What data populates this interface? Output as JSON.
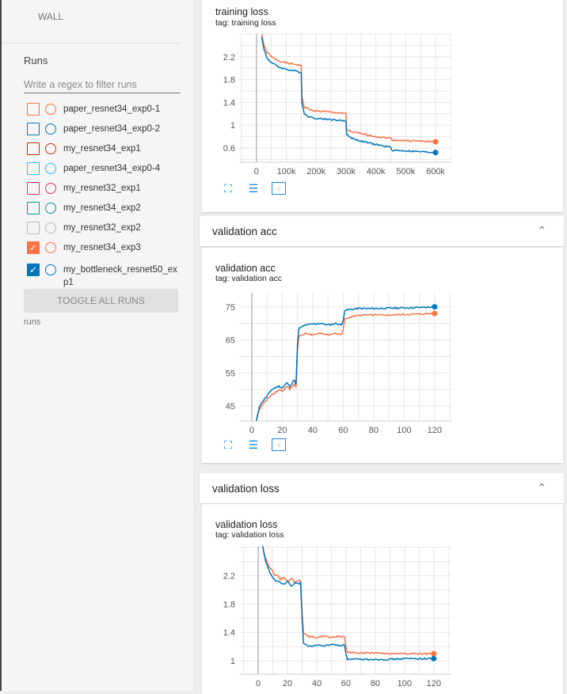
{
  "sidebar": {
    "wall_label": "WALL",
    "runs_title": "Runs",
    "filter_placeholder": "Write a regex to filter runs",
    "runs": [
      {
        "label": "paper_resnet34_exp0-1",
        "color": "#ff7043",
        "checked": false
      },
      {
        "label": "paper_resnet34_exp0-2",
        "color": "#0077bb",
        "checked": false
      },
      {
        "label": "my_resnet34_exp1",
        "color": "#cc3311",
        "checked": false
      },
      {
        "label": "paper_resnet34_exp0-4",
        "color": "#33bbee",
        "checked": false
      },
      {
        "label": "my_resnet32_exp1",
        "color": "#ee3377",
        "checked": false
      },
      {
        "label": "my_resnet34_exp2",
        "color": "#009988",
        "checked": false
      },
      {
        "label": "my_resnet32_exp2",
        "color": "#bbbbbb",
        "checked": false
      },
      {
        "label": "my_resnet34_exp3",
        "color": "#ff7043",
        "checked": true
      },
      {
        "label": "my_bottleneck_resnet50_exp1",
        "color": "#0077bb",
        "checked": true
      }
    ],
    "toggle_all": "TOGGLE ALL RUNS",
    "footer": "runs"
  },
  "sections": [
    {
      "header": "validation acc",
      "chevron": "^"
    },
    {
      "header": "validation loss",
      "chevron": "^"
    }
  ],
  "chart_data": [
    {
      "type": "line",
      "title": "training loss",
      "tag": "tag: training loss",
      "xlim": [
        -58,
        653
      ],
      "ylim": [
        0.35,
        2.6
      ],
      "xticks": [
        0,
        100,
        200,
        300,
        400,
        500,
        600
      ],
      "xtick_labels": [
        "0",
        "100k",
        "200k",
        "300k",
        "400k",
        "500k",
        "600k"
      ],
      "yticks": [
        0.6,
        1,
        1.4,
        1.8,
        2.2
      ],
      "ytick_labels": [
        "0.6",
        "1",
        "1.4",
        "1.8",
        "2.2"
      ],
      "series": [
        {
          "name": "my_resnet34_exp3",
          "color": "#ff7043",
          "x": [
            18,
            25,
            35,
            50,
            75,
            100,
            150,
            152,
            160,
            180,
            200,
            250,
            300,
            302,
            320,
            350,
            400,
            450,
            455,
            500,
            600
          ],
          "y": [
            2.6,
            2.4,
            2.28,
            2.2,
            2.13,
            2.09,
            2.05,
            1.5,
            1.32,
            1.27,
            1.25,
            1.23,
            1.2,
            0.92,
            0.88,
            0.85,
            0.8,
            0.77,
            0.74,
            0.73,
            0.71
          ]
        },
        {
          "name": "my_bottleneck_resnet50_exp1",
          "color": "#0077bb",
          "x": [
            18,
            25,
            35,
            50,
            75,
            100,
            150,
            152,
            160,
            180,
            200,
            250,
            300,
            302,
            320,
            350,
            400,
            450,
            455,
            500,
            600
          ],
          "y": [
            2.55,
            2.33,
            2.18,
            2.1,
            2.02,
            1.98,
            1.93,
            1.4,
            1.2,
            1.14,
            1.12,
            1.1,
            1.07,
            0.84,
            0.77,
            0.72,
            0.66,
            0.61,
            0.56,
            0.55,
            0.52
          ]
        }
      ]
    },
    {
      "type": "line",
      "title": "validation acc",
      "tag": "tag: validation acc",
      "xlim": [
        -8.3,
        131
      ],
      "ylim": [
        40.5,
        79.25
      ],
      "xticks": [
        0,
        20,
        40,
        60,
        80,
        100,
        120
      ],
      "xtick_labels": [
        "0",
        "20",
        "40",
        "60",
        "80",
        "100",
        "120"
      ],
      "yticks": [
        45,
        55,
        65,
        75
      ],
      "ytick_labels": [
        "45",
        "55",
        "65",
        "75"
      ],
      "series": [
        {
          "name": "my_resnet34_exp3",
          "color": "#ff7043",
          "x": [
            3,
            5,
            8,
            10,
            13,
            15,
            18,
            20,
            23,
            25,
            28,
            29,
            30,
            31,
            35,
            40,
            45,
            50,
            55,
            59,
            60,
            61,
            70,
            80,
            90,
            100,
            110,
            120
          ],
          "y": [
            40.5,
            44,
            46,
            47,
            48.5,
            49,
            50,
            49.5,
            51,
            50,
            51.5,
            50.5,
            62,
            66,
            67,
            66.5,
            67,
            66.5,
            67,
            66.5,
            68,
            71.5,
            72.5,
            72.5,
            72.5,
            72.7,
            72.8,
            73
          ]
        },
        {
          "name": "my_bottleneck_resnet50_exp1",
          "color": "#0077bb",
          "x": [
            3,
            5,
            8,
            10,
            13,
            15,
            18,
            20,
            23,
            25,
            28,
            29,
            30,
            31,
            35,
            40,
            45,
            50,
            55,
            59,
            60,
            61,
            70,
            80,
            90,
            100,
            110,
            120
          ],
          "y": [
            40.5,
            45,
            47,
            48,
            50,
            50.5,
            51,
            50.5,
            52,
            51,
            53,
            51.5,
            64,
            68.5,
            69.5,
            69.8,
            70,
            69.5,
            70,
            69.5,
            71,
            74,
            74.5,
            74.5,
            74.6,
            74.7,
            74.8,
            75
          ]
        }
      ]
    },
    {
      "type": "line",
      "title": "validation loss",
      "tag": "tag: validation loss",
      "xlim": [
        -13,
        132
      ],
      "ylim": [
        0.81,
        2.62
      ],
      "xticks": [
        0,
        20,
        40,
        60,
        80,
        100,
        120
      ],
      "xtick_labels": [
        "0",
        "20",
        "40",
        "60",
        "80",
        "100",
        "120"
      ],
      "yticks": [
        1,
        1.4,
        1.8,
        2.2
      ],
      "ytick_labels": [
        "1",
        "1.4",
        "1.8",
        "2.2"
      ],
      "series": [
        {
          "name": "my_resnet34_exp3",
          "color": "#ff7043",
          "x": [
            3,
            5,
            7,
            9,
            11,
            13,
            15,
            18,
            20,
            23,
            25,
            28,
            29,
            30,
            31,
            35,
            40,
            45,
            50,
            55,
            59,
            60,
            61,
            70,
            80,
            90,
            100,
            120
          ],
          "y": [
            2.62,
            2.45,
            2.35,
            2.3,
            2.22,
            2.2,
            2.15,
            2.18,
            2.12,
            2.17,
            2.1,
            2.15,
            2.12,
            1.7,
            1.38,
            1.34,
            1.33,
            1.35,
            1.32,
            1.35,
            1.33,
            1.2,
            1.12,
            1.11,
            1.11,
            1.1,
            1.1,
            1.1
          ]
        },
        {
          "name": "my_bottleneck_resnet50_exp1",
          "color": "#0077bb",
          "x": [
            3,
            5,
            7,
            9,
            11,
            13,
            15,
            18,
            20,
            23,
            25,
            28,
            29,
            30,
            31,
            35,
            40,
            45,
            50,
            55,
            59,
            60,
            61,
            70,
            80,
            90,
            100,
            120
          ],
          "y": [
            2.62,
            2.4,
            2.3,
            2.2,
            2.15,
            2.12,
            2.1,
            2.08,
            2.12,
            2.05,
            2.1,
            2.08,
            2.1,
            1.6,
            1.25,
            1.2,
            1.22,
            1.21,
            1.23,
            1.22,
            1.22,
            1.1,
            1.02,
            1.02,
            1.02,
            1.02,
            1.03,
            1.03
          ]
        }
      ]
    }
  ]
}
